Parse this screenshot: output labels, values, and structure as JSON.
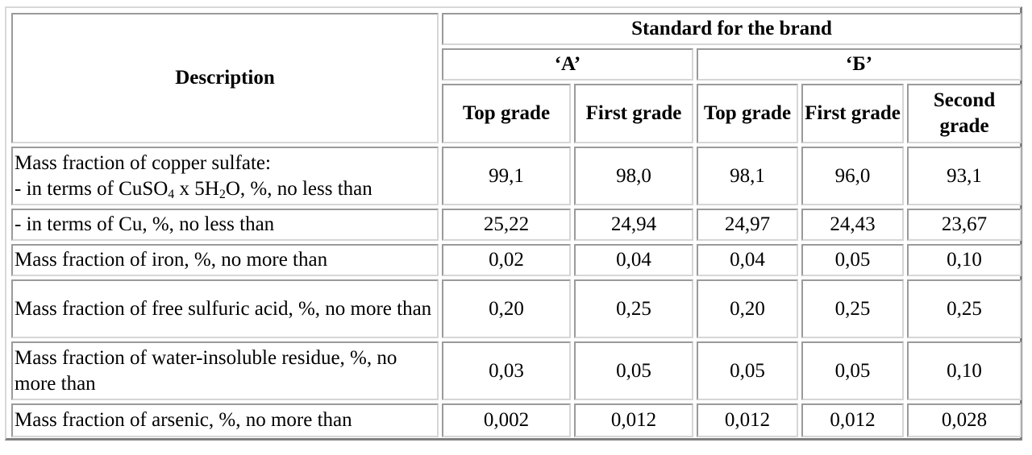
{
  "header": {
    "description": "Description",
    "standard": "Standard for the brand",
    "brand_a": "‘А’",
    "brand_b": "‘Б’",
    "grades": [
      "Top grade",
      "First grade",
      "Top grade",
      "First grade",
      "Second grade"
    ]
  },
  "rows": [
    {
      "line1": "Mass fraction of copper sulfate:",
      "line2_pre": "- in terms of CuSO",
      "line2_sub1": "4",
      "line2_mid": " x 5H",
      "line2_sub2": "2",
      "line2_post": "O, %, no less than",
      "values": [
        "99,1",
        "98,0",
        "98,1",
        "96,0",
        "93,1"
      ]
    },
    {
      "label": "- in terms of Cu, %, no less than",
      "values": [
        "25,22",
        "24,94",
        "24,97",
        "24,43",
        "23,67"
      ]
    },
    {
      "label": "Mass fraction of iron, %, no more than",
      "values": [
        "0,02",
        "0,04",
        "0,04",
        "0,05",
        "0,10"
      ]
    },
    {
      "label": "Mass fraction of free sulfuric acid, %, no more than",
      "values": [
        "0,20",
        "0,25",
        "0,20",
        "0,25",
        "0,25"
      ]
    },
    {
      "label": "Mass fraction of water-insoluble residue, %, no more than",
      "values": [
        "0,03",
        "0,05",
        "0,05",
        "0,05",
        "0,10"
      ]
    },
    {
      "label": "Mass fraction of arsenic, %, no more than",
      "values": [
        "0,002",
        "0,012",
        "0,012",
        "0,012",
        "0,028"
      ]
    }
  ]
}
